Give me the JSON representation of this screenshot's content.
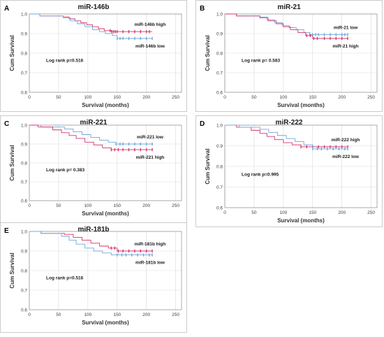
{
  "chart_data": [
    {
      "panel": "A",
      "type": "line",
      "title": "miR-146b",
      "xlabel": "Survival (months)",
      "ylabel": "Cum Survival",
      "xlim": [
        0,
        260
      ],
      "ylim": [
        0.6,
        1.0
      ],
      "xticks": [
        0,
        50,
        100,
        150,
        200,
        250
      ],
      "yticks": [
        0.6,
        0.7,
        0.8,
        0.9,
        1.0
      ],
      "ytick_labels": [
        "0.6",
        "0.7",
        "0.8",
        "0.9",
        "1.0"
      ],
      "annotation": "Log rank p=0.516",
      "series": [
        {
          "name": "miR-146b high",
          "color": "#d6336c",
          "x": [
            0,
            18,
            58,
            68,
            78,
            88,
            98,
            108,
            118,
            128,
            140,
            210
          ],
          "y": [
            1.0,
            0.99,
            0.985,
            0.975,
            0.965,
            0.955,
            0.945,
            0.935,
            0.925,
            0.915,
            0.91,
            0.91
          ],
          "censored": [
            138,
            141,
            144,
            147,
            150,
            160,
            170,
            180,
            190,
            200,
            205
          ]
        },
        {
          "name": "miR-146b low",
          "color": "#6fa8dc",
          "x": [
            0,
            18,
            58,
            70,
            82,
            95,
            108,
            120,
            130,
            142,
            150,
            210
          ],
          "y": [
            1.0,
            0.99,
            0.98,
            0.965,
            0.95,
            0.935,
            0.92,
            0.91,
            0.9,
            0.89,
            0.875,
            0.875
          ],
          "censored": [
            150,
            155,
            160,
            170,
            180,
            190,
            200,
            210
          ]
        }
      ],
      "legend": [
        {
          "text": "miR-146b high",
          "position": "top-right"
        },
        {
          "text": "miR-146b low",
          "position": "right"
        }
      ]
    },
    {
      "panel": "B",
      "type": "line",
      "title": "miR-21",
      "xlabel": "Survival (months)",
      "ylabel": "Cum Survival",
      "xlim": [
        0,
        260
      ],
      "ylim": [
        0.6,
        1.0
      ],
      "xticks": [
        0,
        50,
        100,
        150,
        200,
        250
      ],
      "yticks": [
        0.6,
        0.7,
        0.8,
        0.9,
        1.0
      ],
      "ytick_labels": [
        "0.6",
        "0.7",
        "0.8",
        "0.9",
        "1.0"
      ],
      "annotation": "Log rank p= 0.583",
      "series": [
        {
          "name": "miR-21 low",
          "color": "#6fa8dc",
          "x": [
            0,
            20,
            60,
            72,
            85,
            98,
            110,
            122,
            135,
            145,
            210
          ],
          "y": [
            1.0,
            0.99,
            0.985,
            0.97,
            0.955,
            0.94,
            0.93,
            0.92,
            0.905,
            0.895,
            0.895
          ],
          "censored": [
            145,
            150,
            155,
            160,
            170,
            180,
            190,
            200,
            205,
            210
          ]
        },
        {
          "name": "miR-21 high",
          "color": "#d6336c",
          "x": [
            0,
            20,
            60,
            74,
            88,
            100,
            112,
            125,
            138,
            150,
            210
          ],
          "y": [
            1.0,
            0.99,
            0.98,
            0.965,
            0.95,
            0.935,
            0.92,
            0.905,
            0.89,
            0.875,
            0.875
          ],
          "censored": [
            140,
            146,
            152,
            158,
            170,
            180,
            190,
            200,
            210
          ]
        }
      ],
      "legend": [
        {
          "text": "miR-21 low",
          "position": "top-right"
        },
        {
          "text": "miR-21 high",
          "position": "right"
        }
      ]
    },
    {
      "panel": "C",
      "type": "line",
      "title": "miR-221",
      "xlabel": "Survival (months)",
      "ylabel": "Cum Survival",
      "xlim": [
        0,
        260
      ],
      "ylim": [
        0.6,
        1.0
      ],
      "xticks": [
        0,
        50,
        100,
        150,
        200,
        250
      ],
      "yticks": [
        0.6,
        0.7,
        0.8,
        0.9,
        1.0
      ],
      "ytick_labels": [
        "0.6",
        "0.7",
        "0.8",
        "0.9",
        "1.0"
      ],
      "annotation": "Log rank p= 0.383",
      "series": [
        {
          "name": "miR-221 low",
          "color": "#6fa8dc",
          "x": [
            0,
            20,
            60,
            75,
            90,
            105,
            120,
            135,
            148,
            210
          ],
          "y": [
            1.0,
            0.99,
            0.98,
            0.965,
            0.95,
            0.935,
            0.92,
            0.91,
            0.9,
            0.9
          ],
          "censored": [
            148,
            155,
            160,
            170,
            180,
            190,
            200,
            210
          ]
        },
        {
          "name": "miR-221 high",
          "color": "#d6336c",
          "x": [
            0,
            15,
            40,
            55,
            68,
            80,
            95,
            110,
            125,
            140,
            210
          ],
          "y": [
            1.0,
            0.99,
            0.975,
            0.96,
            0.945,
            0.93,
            0.91,
            0.895,
            0.88,
            0.87,
            0.87
          ],
          "censored": [
            140,
            146,
            152,
            160,
            170,
            180,
            190,
            200,
            210
          ]
        }
      ],
      "legend": [
        {
          "text": "miR-221 low",
          "position": "top-right"
        },
        {
          "text": "miR-221 high",
          "position": "right"
        }
      ]
    },
    {
      "panel": "D",
      "type": "line",
      "title": "miR-222",
      "xlabel": "Survival (months)",
      "ylabel": "Cum Survival",
      "xlim": [
        0,
        260
      ],
      "ylim": [
        0.6,
        1.0
      ],
      "xticks": [
        0,
        50,
        100,
        150,
        200,
        250
      ],
      "yticks": [
        0.6,
        0.7,
        0.8,
        0.9,
        1.0
      ],
      "ytick_labels": [
        "0.6",
        "0.7",
        "0.8",
        "0.9",
        "1.0"
      ],
      "annotation": "Log rank p=0.995",
      "series": [
        {
          "name": "miR-222 high",
          "color": "#d6336c",
          "x": [
            0,
            20,
            45,
            60,
            72,
            85,
            100,
            115,
            130,
            210
          ],
          "y": [
            1.0,
            0.99,
            0.975,
            0.96,
            0.945,
            0.93,
            0.915,
            0.905,
            0.895,
            0.895
          ],
          "censored": [
            130,
            140,
            150,
            160,
            170,
            180,
            190,
            200,
            210
          ]
        },
        {
          "name": "miR-222 low",
          "color": "#6fa8dc",
          "x": [
            0,
            25,
            60,
            75,
            90,
            105,
            120,
            135,
            150,
            210
          ],
          "y": [
            1.0,
            0.99,
            0.98,
            0.965,
            0.95,
            0.935,
            0.92,
            0.905,
            0.885,
            0.885
          ],
          "censored": [
            150,
            158,
            165,
            175,
            185,
            195,
            205,
            210
          ]
        }
      ],
      "legend": [
        {
          "text": "miR-222 high",
          "position": "top-right"
        },
        {
          "text": "miR-222 low",
          "position": "right"
        }
      ]
    },
    {
      "panel": "E",
      "type": "line",
      "title": "miR-181b",
      "xlabel": "Survival (months)",
      "ylabel": "Cum Survival",
      "xlim": [
        0,
        260
      ],
      "ylim": [
        0.6,
        1.0
      ],
      "xticks": [
        0,
        50,
        100,
        150,
        200,
        250
      ],
      "yticks": [
        0.6,
        0.7,
        0.8,
        0.9,
        1.0
      ],
      "ytick_labels": [
        "0.6",
        "0.7",
        "0.8",
        "0.9",
        "1.0"
      ],
      "annotation": "Log rank p=0.516",
      "series": [
        {
          "name": "miR-181b high",
          "color": "#d6336c",
          "x": [
            0,
            20,
            60,
            75,
            90,
            105,
            120,
            135,
            150,
            210
          ],
          "y": [
            1.0,
            0.99,
            0.985,
            0.97,
            0.955,
            0.94,
            0.925,
            0.915,
            0.9,
            0.9
          ],
          "censored": [
            140,
            146,
            152,
            160,
            170,
            180,
            190,
            200,
            210
          ]
        },
        {
          "name": "miR-181b low",
          "color": "#6fa8dc",
          "x": [
            0,
            20,
            55,
            68,
            80,
            95,
            110,
            125,
            140,
            210
          ],
          "y": [
            1.0,
            0.99,
            0.975,
            0.955,
            0.935,
            0.915,
            0.9,
            0.89,
            0.88,
            0.88
          ],
          "censored": [
            150,
            158,
            165,
            175,
            185,
            195,
            205,
            210
          ]
        }
      ],
      "legend": [
        {
          "text": "miR-181b high",
          "position": "top-right"
        },
        {
          "text": "miR-181b low",
          "position": "right"
        }
      ]
    }
  ]
}
